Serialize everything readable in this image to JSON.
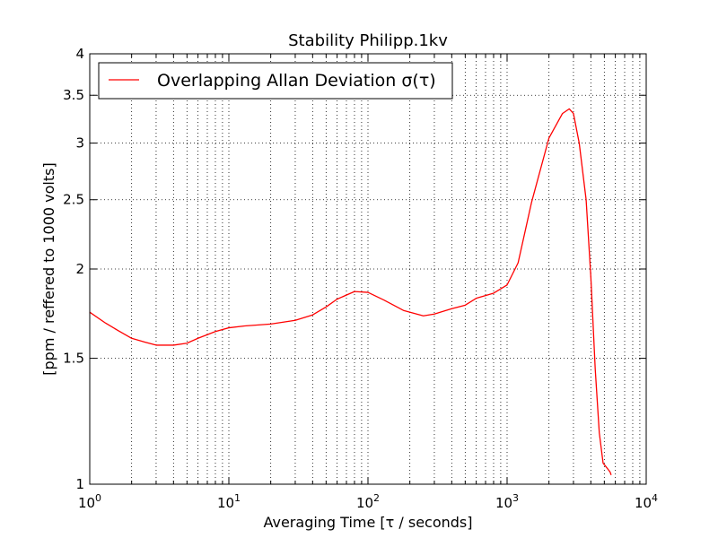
{
  "chart_data": {
    "type": "line",
    "title": "Stability Philipp.1kv",
    "xlabel": "Averaging Time [τ / seconds]",
    "ylabel": "[ppm / reffered to 1000 volts]",
    "xscale": "log",
    "yscale": "log",
    "xlim": [
      1,
      10000
    ],
    "ylim": [
      1,
      4
    ],
    "grid": true,
    "legend_position": "top-left",
    "x_ticks": [
      1,
      10,
      100,
      1000,
      10000
    ],
    "x_tick_labels": [
      "10^0",
      "10^1",
      "10^2",
      "10^3",
      "10^4"
    ],
    "y_ticks": [
      1,
      1.5,
      2,
      2.5,
      3,
      3.5,
      4
    ],
    "y_tick_labels": [
      "1",
      "1.5",
      "2",
      "2.5",
      "3",
      "3.5",
      "4"
    ],
    "series": [
      {
        "name": "Overlapping Allan Deviation σ(τ)",
        "color": "#ff0000",
        "x": [
          1,
          1.3,
          1.6,
          2,
          2.5,
          3,
          4,
          5,
          6,
          8,
          10,
          13,
          20,
          30,
          40,
          50,
          60,
          80,
          100,
          130,
          180,
          250,
          300,
          400,
          500,
          600,
          800,
          1000,
          1200,
          1500,
          2000,
          2500,
          2800,
          3000,
          3300,
          3700,
          4000,
          4300,
          4600,
          4900,
          5100,
          5300,
          5500,
          5600
        ],
        "y": [
          1.74,
          1.68,
          1.64,
          1.6,
          1.58,
          1.565,
          1.565,
          1.575,
          1.6,
          1.635,
          1.655,
          1.665,
          1.675,
          1.695,
          1.725,
          1.77,
          1.815,
          1.86,
          1.855,
          1.81,
          1.75,
          1.72,
          1.73,
          1.76,
          1.78,
          1.82,
          1.85,
          1.9,
          2.04,
          2.48,
          3.05,
          3.3,
          3.35,
          3.3,
          3.0,
          2.5,
          1.95,
          1.45,
          1.18,
          1.07,
          1.06,
          1.05,
          1.04,
          1.03
        ]
      }
    ]
  }
}
